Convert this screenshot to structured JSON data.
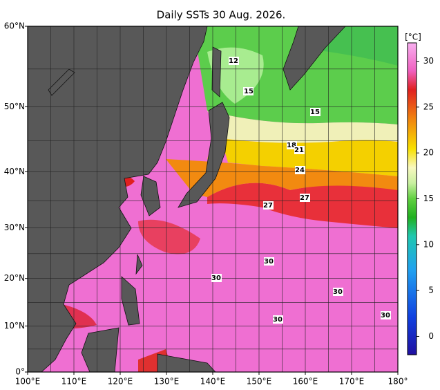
{
  "title": "Daily SSTs 30 Aug. 2026.",
  "map": {
    "lon_ticks": [
      {
        "value": 100,
        "label": "100°E"
      },
      {
        "value": 110,
        "label": "110°E"
      },
      {
        "value": 120,
        "label": "120°E"
      },
      {
        "value": 130,
        "label": "130°E"
      },
      {
        "value": 140,
        "label": "140°E"
      },
      {
        "value": 150,
        "label": "150°E"
      },
      {
        "value": 160,
        "label": "160°E"
      },
      {
        "value": 170,
        "label": "170°E"
      },
      {
        "value": 180,
        "label": "180°"
      }
    ],
    "lat_ticks": [
      {
        "value": 60,
        "label": "60°N"
      },
      {
        "value": 50,
        "label": "50°N"
      },
      {
        "value": 40,
        "label": "40°N"
      },
      {
        "value": 30,
        "label": "30°N"
      },
      {
        "value": 20,
        "label": "20°N"
      },
      {
        "value": 10,
        "label": "10°N"
      },
      {
        "value": 0,
        "label": "0°"
      }
    ],
    "contour_labels": [
      "12",
      "15",
      "15",
      "18",
      "21",
      "24",
      "27",
      "27",
      "30",
      "30",
      "30",
      "30",
      "30"
    ]
  },
  "colorbar": {
    "unit": "[°C]",
    "range": [
      -2,
      32
    ],
    "ticks": [
      0,
      5,
      10,
      15,
      20,
      25,
      30
    ]
  }
}
